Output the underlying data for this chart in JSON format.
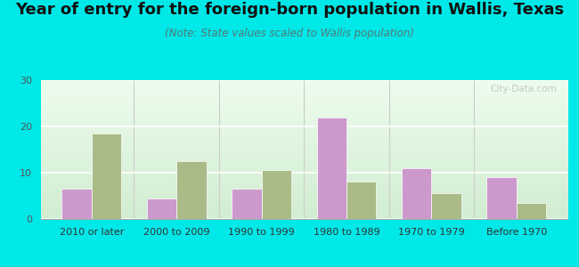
{
  "title": "Year of entry for the foreign-born population in Wallis, Texas",
  "subtitle": "(Note: State values scaled to Wallis population)",
  "categories": [
    "2010 or later",
    "2000 to 2009",
    "1990 to 1999",
    "1980 to 1989",
    "1970 to 1979",
    "Before 1970"
  ],
  "wallis_values": [
    6.5,
    4.5,
    6.5,
    22.0,
    11.0,
    9.0
  ],
  "texas_values": [
    18.5,
    12.5,
    10.5,
    8.0,
    5.5,
    3.5
  ],
  "wallis_color": "#cc99cc",
  "texas_color": "#aabb88",
  "background_color": "#00e8e8",
  "ylim": [
    0,
    30
  ],
  "yticks": [
    0,
    10,
    20,
    30
  ],
  "bar_width": 0.35,
  "title_fontsize": 13,
  "subtitle_fontsize": 8.5,
  "tick_fontsize": 8,
  "legend_fontsize": 9,
  "watermark": "City-Data.com"
}
